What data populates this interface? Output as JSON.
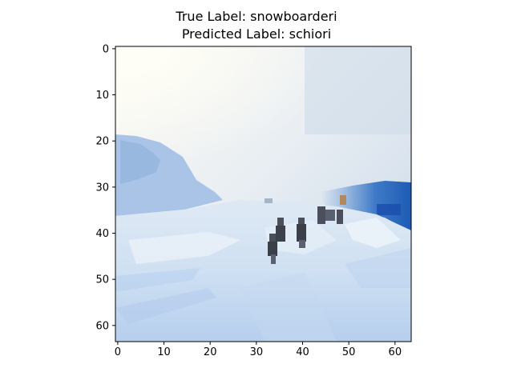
{
  "title": {
    "true_label": "True Label: snowboarderi",
    "predicted_label": "Predicted Label: schiori"
  },
  "axes": {
    "x_ticks": [
      "0",
      "10",
      "20",
      "30",
      "40",
      "50",
      "60"
    ],
    "y_ticks": [
      "0",
      "10",
      "20",
      "30",
      "40",
      "50",
      "60"
    ],
    "x_range": [
      -0.5,
      63.5
    ],
    "y_range": [
      -0.5,
      63.5
    ]
  },
  "image": {
    "subject": "snowy ski slope with skiers under a bright sky",
    "colors": {
      "sky": "#f7f7f1",
      "snow": "#c9dcf0",
      "mountain": "#9bbde4",
      "deep_blue": "#1f5fb8",
      "skier": "#3b3f4a"
    }
  }
}
